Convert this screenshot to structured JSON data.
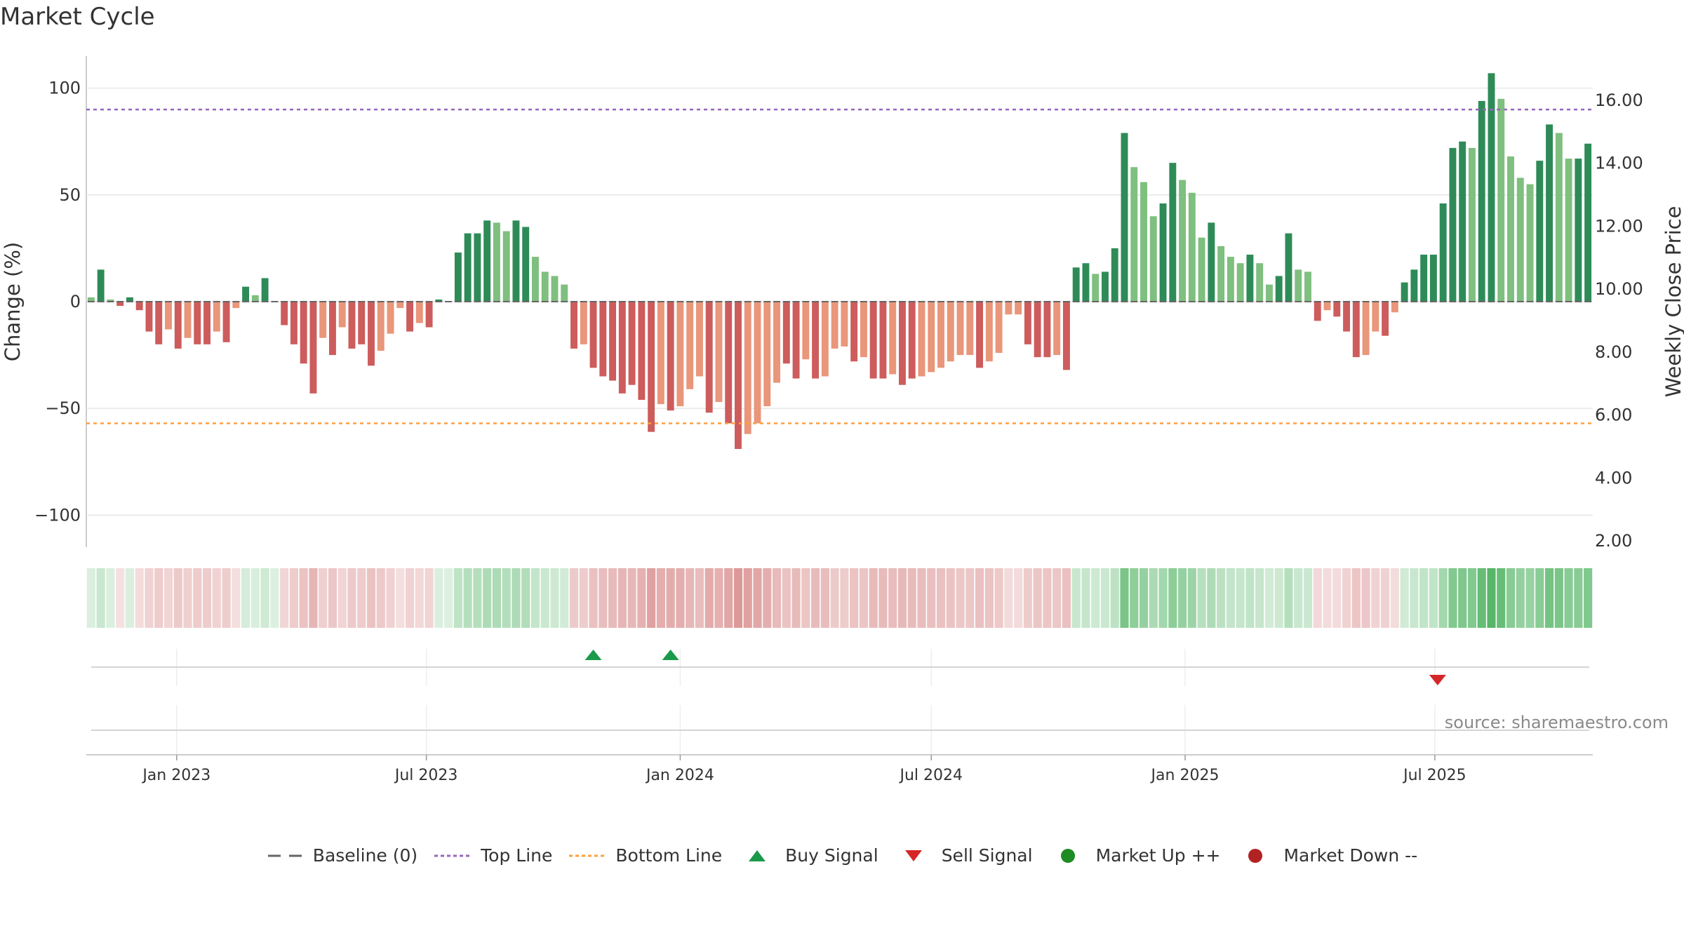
{
  "title": "Market Cycle",
  "source": "source: sharemaestro.com",
  "colors": {
    "strong_up": "#2e8b57",
    "mild_up": "#7fbf7f",
    "strong_down": "#cd5c5c",
    "mild_down": "#e9967a",
    "top_line": "#9467bd",
    "bottom_line": "#ff9f40",
    "buy": "#1a9a4a",
    "sell": "#d62728",
    "market_up": "#1f8b24",
    "market_down": "#b22222",
    "baseline": "#666666"
  },
  "legend": [
    {
      "label": "Baseline (0)",
      "icon": "baseline-dash-icon"
    },
    {
      "label": "Top Line",
      "icon": "top-line-icon"
    },
    {
      "label": "Bottom Line",
      "icon": "bottom-line-icon"
    },
    {
      "label": "Buy Signal",
      "icon": "buy-triangle-icon"
    },
    {
      "label": "Sell Signal",
      "icon": "sell-triangle-icon"
    },
    {
      "label": "Market Up ++",
      "icon": "market-up-dot-icon"
    },
    {
      "label": "Market Down --",
      "icon": "market-down-dot-icon"
    }
  ],
  "chart_data": {
    "type": "bar",
    "xlabel": "",
    "ylabel": "Change (%)",
    "y2label": "Weekly Close Price",
    "ylim": [
      -115,
      115
    ],
    "y2lim": [
      1.8,
      17.4
    ],
    "yticks": [
      "100",
      "50",
      "0",
      "−50",
      "−100"
    ],
    "y2ticks": [
      "16.00",
      "14.00",
      "12.00",
      "10.00",
      "8.00",
      "6.00",
      "4.00",
      "2.00"
    ],
    "xticks": [
      "Jan 2023",
      "Jul 2023",
      "Jan 2024",
      "Jul 2024",
      "Jan 2025",
      "Jul 2025"
    ],
    "xtick_dates": [
      "2023-01-01",
      "2023-07-01",
      "2024-01-01",
      "2024-07-01",
      "2025-01-01",
      "2025-07-01"
    ],
    "first_week": "2022-10-31",
    "week_interval_days": 7,
    "top_line": 90,
    "bottom_line": -57,
    "baseline": 0,
    "values": [
      2,
      15,
      1,
      -2,
      2,
      -4,
      -14,
      -20,
      -13,
      -22,
      -17,
      -20,
      -20,
      -14,
      -19,
      -3,
      7,
      3,
      11,
      0,
      -11,
      -20,
      -29,
      -43,
      -17,
      -25,
      -12,
      -22,
      -20,
      -30,
      -23,
      -15,
      -3,
      -14,
      -10,
      -12,
      1,
      0,
      23,
      32,
      32,
      38,
      37,
      33,
      38,
      35,
      21,
      14,
      12,
      8,
      -22,
      -20,
      -31,
      -35,
      -37,
      -43,
      -39,
      -46,
      -61,
      -48,
      -51,
      -49,
      -41,
      -35,
      -52,
      -47,
      -57,
      -69,
      -62,
      -57,
      -49,
      -38,
      -29,
      -36,
      -27,
      -36,
      -35,
      -22,
      -21,
      -28,
      -26,
      -36,
      -36,
      -34,
      -39,
      -36,
      -35,
      -33,
      -31,
      -28,
      -25,
      -25,
      -31,
      -28,
      -24,
      -6,
      -6,
      -20,
      -26,
      -26,
      -25,
      -32,
      16,
      18,
      13,
      14,
      25,
      79,
      63,
      56,
      40,
      46,
      65,
      57,
      51,
      30,
      37,
      26,
      21,
      18,
      22,
      18,
      8,
      12,
      32,
      15,
      14,
      -9,
      -4,
      -7,
      -14,
      -26,
      -25,
      -14,
      -16,
      -5,
      9,
      15,
      22,
      22,
      46,
      72,
      75,
      72,
      94,
      107,
      95,
      68,
      58,
      55,
      66,
      83,
      79,
      67,
      67,
      74
    ],
    "categories_colors": [
      "u2",
      "u1",
      "u2",
      "d1",
      "u1",
      "d1",
      "d1",
      "d1",
      "d2",
      "d1",
      "d2",
      "d1",
      "d1",
      "d2",
      "d1",
      "d2",
      "u1",
      "u2",
      "u1",
      "u1",
      "d1",
      "d1",
      "d1",
      "d1",
      "d2",
      "d1",
      "d2",
      "d1",
      "d1",
      "d1",
      "d2",
      "d2",
      "d2",
      "d1",
      "d2",
      "d1",
      "u1",
      "u2",
      "u1",
      "u1",
      "u1",
      "u1",
      "u2",
      "u2",
      "u1",
      "u1",
      "u2",
      "u2",
      "u2",
      "u2",
      "d1",
      "d2",
      "d1",
      "d1",
      "d1",
      "d1",
      "d1",
      "d1",
      "d1",
      "d2",
      "d1",
      "d2",
      "d2",
      "d2",
      "d1",
      "d2",
      "d1",
      "d1",
      "d2",
      "d2",
      "d2",
      "d2",
      "d1",
      "d1",
      "d2",
      "d1",
      "d2",
      "d2",
      "d2",
      "d1",
      "d2",
      "d1",
      "d1",
      "d2",
      "d1",
      "d1",
      "d2",
      "d2",
      "d2",
      "d2",
      "d2",
      "d2",
      "d1",
      "d2",
      "d2",
      "d2",
      "d2",
      "d1",
      "d1",
      "d1",
      "d2",
      "d1",
      "u1",
      "u1",
      "u2",
      "u1",
      "u1",
      "u1",
      "u2",
      "u2",
      "u2",
      "u1",
      "u1",
      "u2",
      "u2",
      "u2",
      "u1",
      "u2",
      "u2",
      "u2",
      "u1",
      "u2",
      "u2",
      "u1",
      "u1",
      "u2",
      "u2",
      "d1",
      "d2",
      "d1",
      "d1",
      "d1",
      "d2",
      "d2",
      "d1",
      "d2",
      "u1",
      "u1",
      "u1",
      "u1",
      "u1",
      "u1",
      "u1",
      "u2",
      "u1",
      "u1",
      "u2",
      "u2",
      "u2",
      "u2",
      "u1",
      "u1",
      "u2",
      "u2",
      "u1",
      "u1"
    ],
    "buy_signals": [
      "2023-10-30",
      "2023-12-25"
    ],
    "sell_signals": [
      "2025-07-01"
    ],
    "legend_position": "bottom",
    "grid": true
  }
}
